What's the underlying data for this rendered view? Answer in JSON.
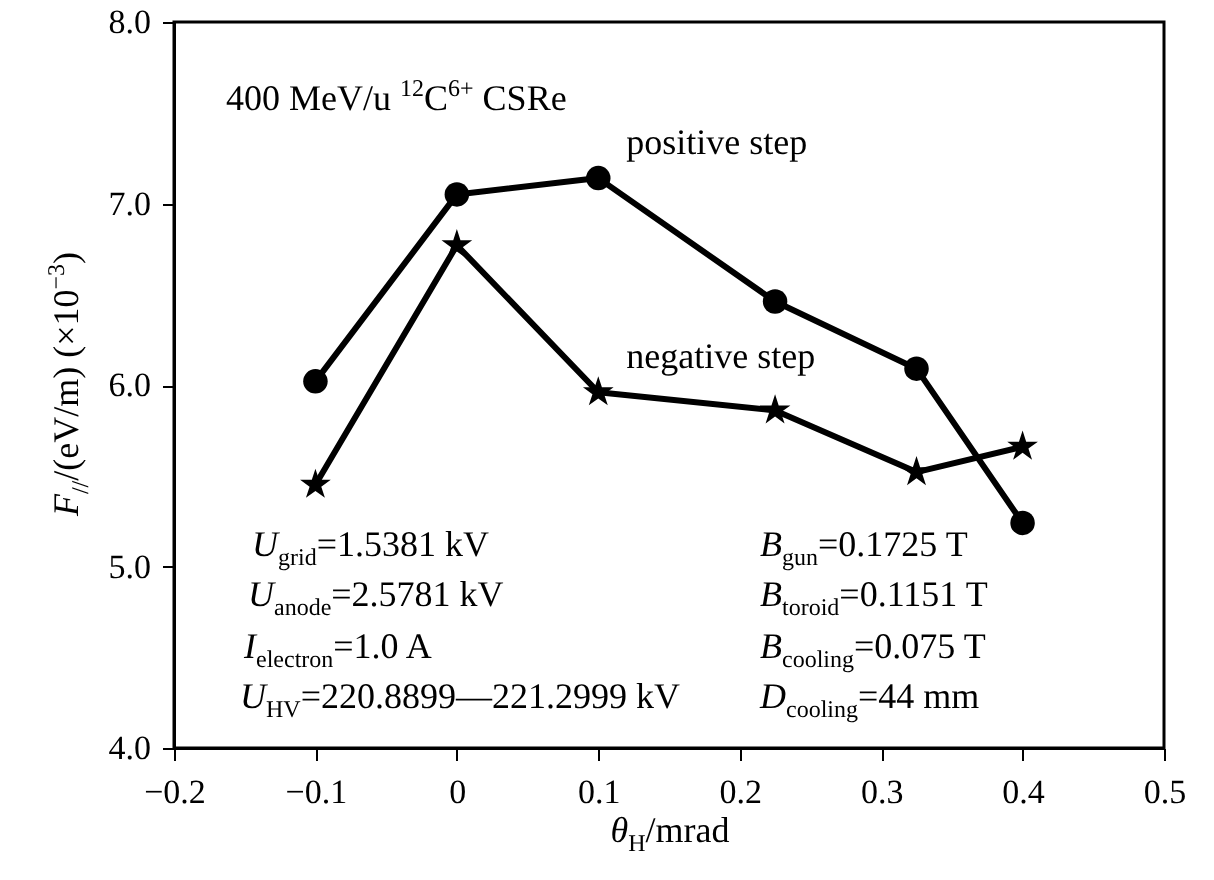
{
  "chart_data": {
    "type": "line",
    "xlabel": "θ$_{H}$/mrad",
    "ylabel": "F$_{//}$/(eV/m) (×10$^{−3}$)",
    "x": [
      -0.1,
      0,
      0.1,
      0.225,
      0.325,
      0.4
    ],
    "series": [
      {
        "name": "positive step",
        "color": "#000000",
        "marker": "circle",
        "values": [
          6.02,
          7.05,
          7.14,
          6.46,
          6.09,
          5.24
        ]
      },
      {
        "name": "negative step",
        "color": "#000000",
        "marker": "star",
        "values": [
          5.45,
          6.77,
          5.96,
          5.86,
          5.52,
          5.66
        ]
      }
    ],
    "xlim": [
      -0.2,
      0.5
    ],
    "xticks": [
      {
        "value": -0.2,
        "label": "−0.2"
      },
      {
        "value": -0.1,
        "label": "−0.1"
      },
      0,
      0.1,
      0.2,
      0.3,
      0.4,
      0.5
    ],
    "ylim": [
      4,
      8
    ],
    "yticks": [
      {
        "value": 4,
        "label": "4.0"
      },
      {
        "value": 5,
        "label": "5.0"
      },
      {
        "value": 6,
        "label": "6.0"
      },
      {
        "value": 7,
        "label": "7.0"
      },
      {
        "value": 8,
        "label": "8.0"
      }
    ],
    "annotations": [
      "400 MeV/u $^{12}$C$^{6+}$  CSRe",
      "U$_{grid}$=1.5381 kV",
      "U$_{anode}$=2.5781 kV",
      "I$_{electron}$=1.0 A",
      "U$_{HV}$=220.8899—221.2999 kV",
      "B$_{gun}$=0.1725 T",
      "B$_{toroid}$=0.1151 T",
      "B$_{cooling}$=0.075 T",
      "D$_{cooling}$=44 mm"
    ],
    "grid": false,
    "legend": false
  }
}
